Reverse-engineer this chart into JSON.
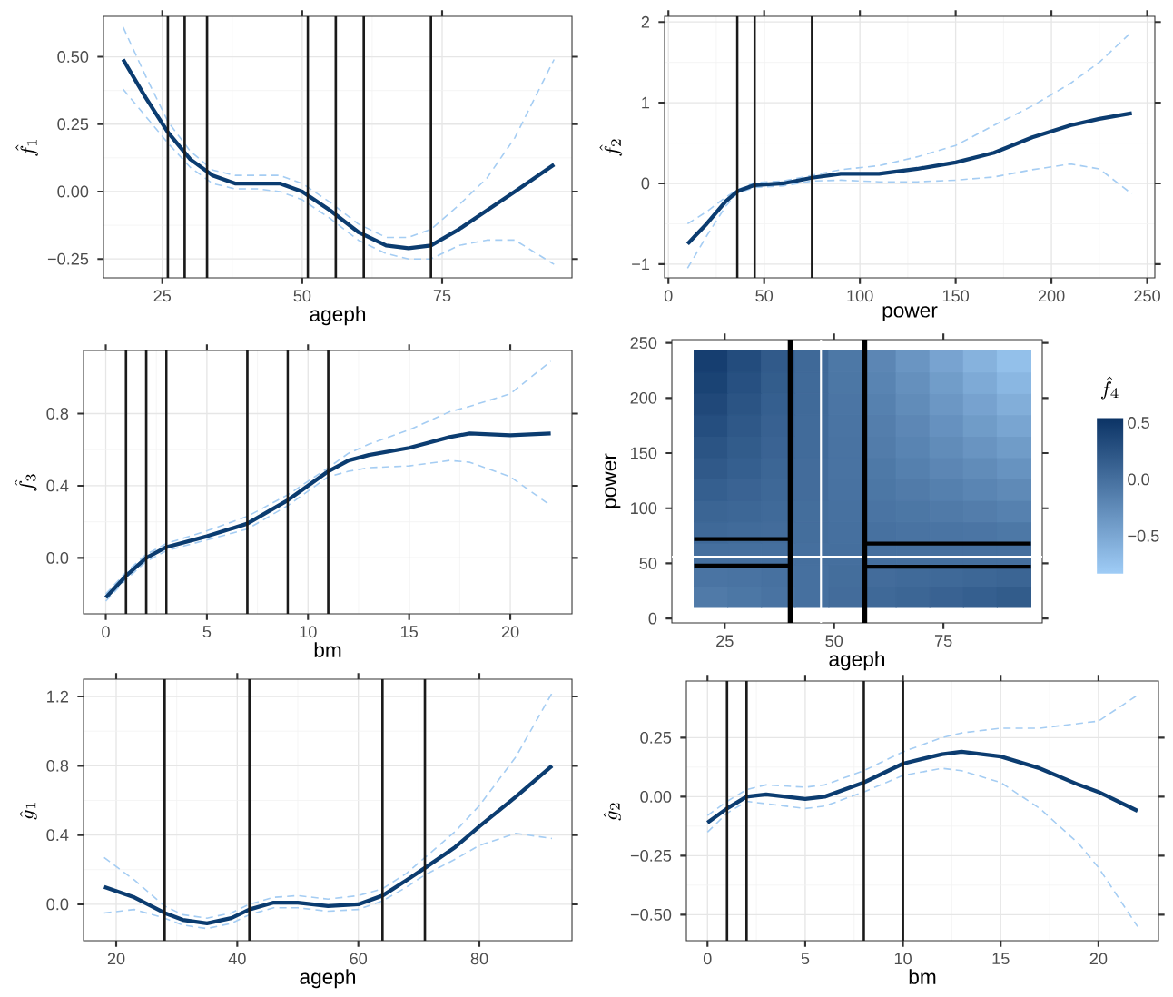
{
  "chart_data": [
    {
      "type": "line",
      "xlabel": "ageph",
      "ylabel": "\\hat{f}_1",
      "grid": true,
      "xlim": [
        14.5,
        98.2
      ],
      "ylim": [
        -0.32,
        0.65
      ],
      "xticks": [
        25,
        50,
        75
      ],
      "yticks": [
        {
          "value": -0.25,
          "label": "−0.25"
        },
        {
          "value": 0,
          "label": "0.00"
        },
        {
          "value": 0.25,
          "label": "0.25"
        },
        {
          "value": 0.5,
          "label": "0.50"
        }
      ],
      "x": [
        18,
        22,
        26,
        30,
        34,
        38,
        42,
        46,
        50,
        55,
        60,
        65,
        69,
        73,
        78,
        83,
        88,
        95
      ],
      "series": [
        {
          "color": "#a5cdf3",
          "line_style": "dashed",
          "values": [
            0.38,
            0.28,
            0.18,
            0.09,
            0.03,
            0.01,
            0.01,
            0.0,
            -0.03,
            -0.1,
            -0.18,
            -0.23,
            -0.25,
            -0.25,
            -0.2,
            -0.18,
            -0.18,
            -0.27
          ]
        },
        {
          "color": "#a5cdf3",
          "line_style": "dashed",
          "values": [
            0.61,
            0.43,
            0.26,
            0.15,
            0.08,
            0.06,
            0.06,
            0.06,
            0.03,
            -0.04,
            -0.12,
            -0.17,
            -0.17,
            -0.14,
            -0.05,
            0.05,
            0.2,
            0.49
          ]
        },
        {
          "color": "#0b3c70",
          "line_style": "solid",
          "values": [
            0.49,
            0.35,
            0.22,
            0.12,
            0.06,
            0.03,
            0.03,
            0.03,
            0.0,
            -0.07,
            -0.15,
            -0.2,
            -0.21,
            -0.2,
            -0.14,
            -0.07,
            0.0,
            0.1
          ]
        }
      ],
      "ref_lines": [
        {
          "axis": "x",
          "value": 26,
          "color": "#1a1a1a"
        },
        {
          "axis": "x",
          "value": 29,
          "color": "#1a1a1a"
        },
        {
          "axis": "x",
          "value": 33,
          "color": "#1a1a1a"
        },
        {
          "axis": "x",
          "value": 51,
          "color": "#1a1a1a"
        },
        {
          "axis": "x",
          "value": 56,
          "color": "#1a1a1a"
        },
        {
          "axis": "x",
          "value": 61,
          "color": "#1a1a1a"
        },
        {
          "axis": "x",
          "value": 73,
          "color": "#1a1a1a"
        }
      ]
    },
    {
      "type": "line",
      "xlabel": "power",
      "ylabel": "\\hat{f}_2",
      "grid": true,
      "xlim": [
        -2,
        254
      ],
      "ylim": [
        -1.17,
        2.07
      ],
      "xticks": [
        0,
        50,
        100,
        150,
        200,
        250
      ],
      "yticks": [
        {
          "value": -1,
          "label": "−1"
        },
        0,
        1,
        2
      ],
      "x": [
        10,
        20,
        30,
        36,
        45,
        60,
        75,
        90,
        110,
        130,
        150,
        170,
        190,
        210,
        225,
        242
      ],
      "series": [
        {
          "color": "#a5cdf3",
          "line_style": "dashed",
          "values": [
            -1.05,
            -0.65,
            -0.28,
            -0.12,
            -0.05,
            -0.03,
            0.03,
            0.04,
            0.02,
            0.02,
            0.04,
            0.08,
            0.17,
            0.24,
            0.18,
            -0.13
          ]
        },
        {
          "color": "#a5cdf3",
          "line_style": "dashed",
          "values": [
            -0.5,
            -0.35,
            -0.17,
            -0.08,
            0.01,
            0.03,
            0.1,
            0.17,
            0.22,
            0.33,
            0.47,
            0.72,
            0.96,
            1.24,
            1.5,
            1.88
          ]
        },
        {
          "color": "#0b3c70",
          "line_style": "solid",
          "values": [
            -0.75,
            -0.5,
            -0.22,
            -0.1,
            -0.02,
            0.0,
            0.07,
            0.12,
            0.12,
            0.18,
            0.26,
            0.38,
            0.57,
            0.72,
            0.8,
            0.87
          ]
        }
      ],
      "ref_lines": [
        {
          "axis": "x",
          "value": 36,
          "color": "#1a1a1a"
        },
        {
          "axis": "x",
          "value": 45,
          "color": "#1a1a1a"
        },
        {
          "axis": "x",
          "value": 75,
          "color": "#1a1a1a"
        }
      ]
    },
    {
      "type": "line",
      "xlabel": "bm",
      "ylabel": "\\hat{f}_3",
      "grid": true,
      "xlim": [
        -1.1,
        23.05
      ],
      "ylim": [
        -0.31,
        1.15
      ],
      "xticks": [
        0,
        5,
        10,
        15,
        20
      ],
      "yticks": [
        {
          "value": 0,
          "label": "0.0"
        },
        {
          "value": 0.4,
          "label": "0.4"
        },
        {
          "value": 0.8,
          "label": "0.8"
        }
      ],
      "x": [
        0,
        1,
        2,
        3,
        5,
        7,
        9,
        11,
        12,
        13,
        15,
        17,
        18,
        20,
        22
      ],
      "series": [
        {
          "color": "#a5cdf3",
          "line_style": "dashed",
          "values": [
            -0.24,
            -0.12,
            -0.02,
            0.04,
            0.1,
            0.16,
            0.29,
            0.45,
            0.48,
            0.5,
            0.51,
            0.54,
            0.53,
            0.45,
            0.29
          ]
        },
        {
          "color": "#a5cdf3",
          "line_style": "dashed",
          "values": [
            -0.2,
            -0.08,
            0.02,
            0.08,
            0.15,
            0.23,
            0.35,
            0.5,
            0.58,
            0.63,
            0.71,
            0.81,
            0.84,
            0.91,
            1.09
          ]
        },
        {
          "color": "#0b3c70",
          "line_style": "solid",
          "values": [
            -0.22,
            -0.1,
            0.0,
            0.06,
            0.12,
            0.19,
            0.32,
            0.48,
            0.54,
            0.57,
            0.61,
            0.67,
            0.69,
            0.68,
            0.69
          ]
        }
      ],
      "ref_lines": [
        {
          "axis": "x",
          "value": 1,
          "color": "#1a1a1a"
        },
        {
          "axis": "x",
          "value": 2,
          "color": "#1a1a1a"
        },
        {
          "axis": "x",
          "value": 3,
          "color": "#1a1a1a"
        },
        {
          "axis": "x",
          "value": 7,
          "color": "#1a1a1a"
        },
        {
          "axis": "x",
          "value": 9,
          "color": "#1a1a1a"
        },
        {
          "axis": "x",
          "value": 11,
          "color": "#1a1a1a"
        }
      ]
    },
    {
      "type": "heatmap",
      "xlabel": "ageph",
      "ylabel": "power",
      "clabel": "\\hat{f}_4",
      "xlim": [
        12.9,
        97.6
      ],
      "ylim": [
        -4,
        253
      ],
      "xticks": [
        25,
        50,
        75
      ],
      "yticks": [
        0,
        50,
        100,
        150,
        200,
        250
      ],
      "clim": [
        -0.84,
        0.55
      ],
      "cticks": [
        {
          "value": -0.5,
          "label": "−0.5"
        },
        {
          "value": 0,
          "label": "0.0"
        },
        {
          "value": 0.5,
          "label": "0.5"
        }
      ],
      "colors": [
        "#a0cdf7",
        "#0a3264"
      ],
      "x": [
        21.85,
        29.55,
        37.25,
        44.95,
        52.65,
        60.35,
        68.05,
        75.75,
        83.45,
        91.15
      ],
      "y": [
        233.3,
        213.9,
        194.5,
        175.0,
        155.6,
        136.2,
        116.8,
        97.4,
        77.9,
        58.5,
        39.1,
        19.7
      ],
      "cells": [
        [
          0.43,
          0.31,
          0.18,
          0.05,
          -0.08,
          -0.21,
          -0.34,
          -0.47,
          -0.6,
          -0.72
        ],
        [
          0.39,
          0.27,
          0.16,
          0.04,
          -0.07,
          -0.19,
          -0.3,
          -0.41,
          -0.53,
          -0.64
        ],
        [
          0.34,
          0.24,
          0.14,
          0.04,
          -0.06,
          -0.16,
          -0.26,
          -0.36,
          -0.46,
          -0.56
        ],
        [
          0.29,
          0.2,
          0.12,
          0.03,
          -0.05,
          -0.14,
          -0.22,
          -0.31,
          -0.4,
          -0.48
        ],
        [
          0.24,
          0.17,
          0.1,
          0.03,
          -0.04,
          -0.12,
          -0.19,
          -0.26,
          -0.33,
          -0.4
        ],
        [
          0.19,
          0.14,
          0.08,
          0.02,
          -0.04,
          -0.09,
          -0.15,
          -0.21,
          -0.26,
          -0.32
        ],
        [
          0.14,
          0.1,
          0.06,
          0.02,
          -0.03,
          -0.07,
          -0.11,
          -0.15,
          -0.2,
          -0.24
        ],
        [
          0.09,
          0.07,
          0.04,
          0.01,
          -0.02,
          -0.05,
          -0.07,
          -0.1,
          -0.13,
          -0.16
        ],
        [
          0.05,
          0.03,
          0.02,
          0.01,
          -0.01,
          -0.02,
          -0.04,
          -0.05,
          -0.06,
          -0.08
        ],
        [
          0.0,
          0.0,
          0.0,
          0.0,
          0.0,
          0.0,
          0.0,
          0.0,
          0.0,
          0.0
        ],
        [
          -0.05,
          -0.04,
          -0.02,
          -0.01,
          0.01,
          0.02,
          0.04,
          0.05,
          0.07,
          0.09
        ],
        [
          -0.1,
          -0.07,
          -0.04,
          -0.01,
          0.02,
          0.05,
          0.08,
          0.11,
          0.14,
          0.17
        ]
      ],
      "series": [
        {
          "type": "line",
          "color": "#000000",
          "line_style": "solid",
          "x": [
            18,
            40
          ],
          "values": [
            72,
            72
          ]
        },
        {
          "type": "line",
          "color": "#000000",
          "line_style": "solid",
          "x": [
            18,
            40
          ],
          "values": [
            48,
            48
          ]
        },
        {
          "type": "line",
          "color": "#000000",
          "line_style": "solid",
          "x": [
            57,
            95
          ],
          "values": [
            68,
            68
          ]
        },
        {
          "type": "line",
          "color": "#000000",
          "line_style": "solid",
          "x": [
            57,
            95
          ],
          "values": [
            47,
            47
          ]
        }
      ],
      "ref_lines": [
        {
          "axis": "x",
          "value": 47,
          "color": "#ffffff"
        },
        {
          "axis": "y",
          "value": 56,
          "color": "#ffffff"
        },
        {
          "axis": "x",
          "value": 40,
          "color": "#000000"
        },
        {
          "axis": "x",
          "value": 57,
          "color": "#000000"
        }
      ]
    },
    {
      "type": "line",
      "xlabel": "ageph",
      "ylabel": "\\hat{g}_1",
      "grid": true,
      "xlim": [
        14.6,
        95.3
      ],
      "ylim": [
        -0.21,
        1.3
      ],
      "xticks": [
        20,
        40,
        60,
        80
      ],
      "yticks": [
        {
          "value": 0,
          "label": "0.0"
        },
        {
          "value": 0.4,
          "label": "0.4"
        },
        {
          "value": 0.8,
          "label": "0.8"
        },
        {
          "value": 1.2,
          "label": "1.2"
        }
      ],
      "x": [
        18,
        23,
        28,
        31,
        35,
        39,
        42,
        46,
        50,
        55,
        60,
        64,
        68,
        71,
        76,
        80,
        86,
        92
      ],
      "series": [
        {
          "color": "#a5cdf3",
          "line_style": "dashed",
          "values": [
            -0.05,
            -0.03,
            -0.08,
            -0.12,
            -0.14,
            -0.11,
            -0.06,
            -0.02,
            -0.02,
            -0.04,
            -0.03,
            0.02,
            0.1,
            0.17,
            0.26,
            0.34,
            0.41,
            0.38
          ]
        },
        {
          "color": "#a5cdf3",
          "line_style": "dashed",
          "values": [
            0.27,
            0.14,
            -0.01,
            -0.06,
            -0.08,
            -0.05,
            0.0,
            0.04,
            0.05,
            0.03,
            0.05,
            0.09,
            0.18,
            0.27,
            0.42,
            0.57,
            0.85,
            1.22
          ]
        },
        {
          "color": "#0b3c70",
          "line_style": "solid",
          "values": [
            0.1,
            0.04,
            -0.05,
            -0.09,
            -0.11,
            -0.08,
            -0.03,
            0.01,
            0.01,
            -0.01,
            0.0,
            0.05,
            0.14,
            0.21,
            0.33,
            0.45,
            0.62,
            0.8
          ]
        }
      ],
      "ref_lines": [
        {
          "axis": "x",
          "value": 28,
          "color": "#1a1a1a"
        },
        {
          "axis": "x",
          "value": 42,
          "color": "#1a1a1a"
        },
        {
          "axis": "x",
          "value": 64,
          "color": "#1a1a1a"
        },
        {
          "axis": "x",
          "value": 71,
          "color": "#1a1a1a"
        }
      ]
    },
    {
      "type": "line",
      "xlabel": "bm",
      "ylabel": "\\hat{g}_2",
      "grid": true,
      "xlim": [
        -1.08,
        23.07
      ],
      "ylim": [
        -0.61,
        0.49
      ],
      "xticks": [
        0,
        5,
        10,
        15,
        20
      ],
      "yticks": [
        {
          "value": -0.5,
          "label": "−0.50"
        },
        {
          "value": -0.25,
          "label": "−0.25"
        },
        {
          "value": 0,
          "label": "0.00"
        },
        {
          "value": 0.25,
          "label": "0.25"
        }
      ],
      "x": [
        0,
        1,
        2,
        3,
        5,
        6,
        8,
        10,
        12,
        13,
        15,
        17,
        19,
        20,
        22
      ],
      "series": [
        {
          "color": "#a5cdf3",
          "line_style": "dashed",
          "values": [
            -0.15,
            -0.07,
            -0.02,
            -0.03,
            -0.05,
            -0.04,
            0.02,
            0.09,
            0.12,
            0.11,
            0.06,
            -0.05,
            -0.2,
            -0.3,
            -0.55
          ]
        },
        {
          "color": "#a5cdf3",
          "line_style": "dashed",
          "values": [
            -0.08,
            -0.02,
            0.03,
            0.05,
            0.04,
            0.05,
            0.11,
            0.19,
            0.25,
            0.27,
            0.29,
            0.29,
            0.31,
            0.32,
            0.43
          ]
        },
        {
          "color": "#0b3c70",
          "line_style": "solid",
          "values": [
            -0.11,
            -0.05,
            0.0,
            0.01,
            -0.01,
            0.0,
            0.06,
            0.14,
            0.18,
            0.19,
            0.17,
            0.12,
            0.05,
            0.02,
            -0.06
          ]
        }
      ],
      "ref_lines": [
        {
          "axis": "x",
          "value": 1,
          "color": "#1a1a1a"
        },
        {
          "axis": "x",
          "value": 2,
          "color": "#1a1a1a"
        },
        {
          "axis": "x",
          "value": 8,
          "color": "#1a1a1a"
        },
        {
          "axis": "x",
          "value": 10,
          "color": "#1a1a1a"
        }
      ]
    }
  ]
}
